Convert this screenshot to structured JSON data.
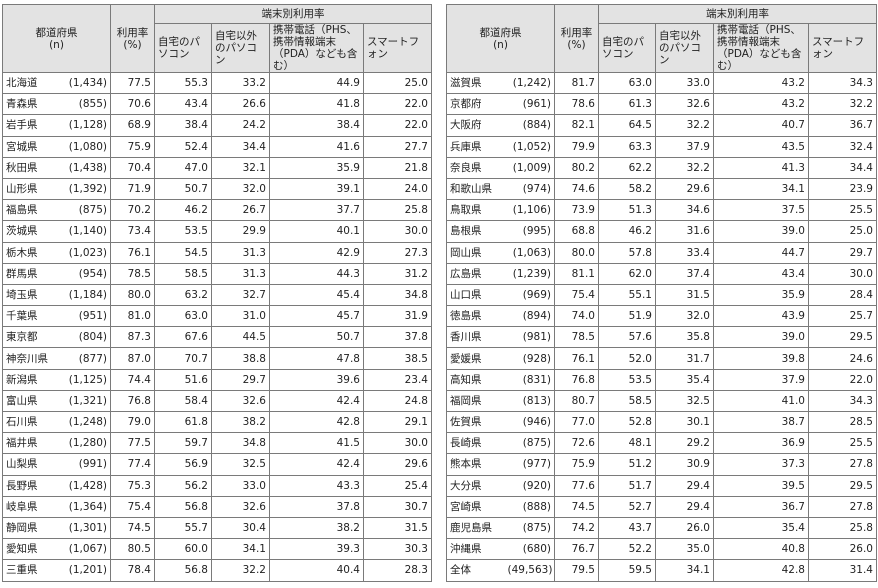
{
  "header": {
    "pref_label": "都道府県",
    "n_label": "(n)",
    "rate_label_1": "利用率",
    "rate_label_2": "(%)",
    "group_label": "端末別利用率",
    "col_home_pc": "自宅のパソコン",
    "col_other_pc": "自宅以外のパソコン",
    "col_mobile": "携帯電話（PHS、携帯情報端末（PDA）なども含む）",
    "col_smartphone": "スマートフォン"
  },
  "left_rows": [
    {
      "name": "北海道",
      "n": "(1,434)",
      "rate": "77.5",
      "home_pc": "55.3",
      "other_pc": "33.2",
      "mobile": "44.9",
      "smart": "25.0"
    },
    {
      "name": "青森県",
      "n": "(855)",
      "rate": "70.6",
      "home_pc": "43.4",
      "other_pc": "26.6",
      "mobile": "41.8",
      "smart": "22.0"
    },
    {
      "name": "岩手県",
      "n": "(1,128)",
      "rate": "68.9",
      "home_pc": "38.4",
      "other_pc": "24.2",
      "mobile": "38.4",
      "smart": "22.0"
    },
    {
      "name": "宮城県",
      "n": "(1,080)",
      "rate": "75.9",
      "home_pc": "52.4",
      "other_pc": "34.4",
      "mobile": "41.6",
      "smart": "27.7"
    },
    {
      "name": "秋田県",
      "n": "(1,438)",
      "rate": "70.4",
      "home_pc": "47.0",
      "other_pc": "32.1",
      "mobile": "35.9",
      "smart": "21.8"
    },
    {
      "name": "山形県",
      "n": "(1,392)",
      "rate": "71.9",
      "home_pc": "50.7",
      "other_pc": "32.0",
      "mobile": "39.1",
      "smart": "24.0"
    },
    {
      "name": "福島県",
      "n": "(875)",
      "rate": "70.2",
      "home_pc": "46.2",
      "other_pc": "26.7",
      "mobile": "37.7",
      "smart": "25.8"
    },
    {
      "name": "茨城県",
      "n": "(1,140)",
      "rate": "73.4",
      "home_pc": "53.5",
      "other_pc": "29.9",
      "mobile": "40.1",
      "smart": "30.0"
    },
    {
      "name": "栃木県",
      "n": "(1,023)",
      "rate": "76.1",
      "home_pc": "54.5",
      "other_pc": "31.3",
      "mobile": "42.9",
      "smart": "27.3"
    },
    {
      "name": "群馬県",
      "n": "(954)",
      "rate": "78.5",
      "home_pc": "58.5",
      "other_pc": "31.3",
      "mobile": "44.3",
      "smart": "31.2"
    },
    {
      "name": "埼玉県",
      "n": "(1,184)",
      "rate": "80.0",
      "home_pc": "63.2",
      "other_pc": "32.7",
      "mobile": "45.4",
      "smart": "34.8"
    },
    {
      "name": "千葉県",
      "n": "(951)",
      "rate": "81.0",
      "home_pc": "63.0",
      "other_pc": "31.0",
      "mobile": "45.7",
      "smart": "31.9"
    },
    {
      "name": "東京都",
      "n": "(804)",
      "rate": "87.3",
      "home_pc": "67.6",
      "other_pc": "44.5",
      "mobile": "50.7",
      "smart": "37.8"
    },
    {
      "name": "神奈川県",
      "n": "(877)",
      "rate": "87.0",
      "home_pc": "70.7",
      "other_pc": "38.8",
      "mobile": "47.8",
      "smart": "38.5"
    },
    {
      "name": "新潟県",
      "n": "(1,125)",
      "rate": "74.4",
      "home_pc": "51.6",
      "other_pc": "29.7",
      "mobile": "39.6",
      "smart": "23.4"
    },
    {
      "name": "富山県",
      "n": "(1,321)",
      "rate": "76.8",
      "home_pc": "58.4",
      "other_pc": "32.6",
      "mobile": "42.4",
      "smart": "24.8"
    },
    {
      "name": "石川県",
      "n": "(1,248)",
      "rate": "79.0",
      "home_pc": "61.8",
      "other_pc": "38.2",
      "mobile": "42.8",
      "smart": "29.1"
    },
    {
      "name": "福井県",
      "n": "(1,280)",
      "rate": "77.5",
      "home_pc": "59.7",
      "other_pc": "34.8",
      "mobile": "41.5",
      "smart": "30.0"
    },
    {
      "name": "山梨県",
      "n": "(991)",
      "rate": "77.4",
      "home_pc": "56.9",
      "other_pc": "32.5",
      "mobile": "42.4",
      "smart": "29.6"
    },
    {
      "name": "長野県",
      "n": "(1,428)",
      "rate": "75.3",
      "home_pc": "56.2",
      "other_pc": "33.0",
      "mobile": "43.3",
      "smart": "25.4"
    },
    {
      "name": "岐阜県",
      "n": "(1,364)",
      "rate": "75.4",
      "home_pc": "56.8",
      "other_pc": "32.6",
      "mobile": "37.8",
      "smart": "30.7"
    },
    {
      "name": "静岡県",
      "n": "(1,301)",
      "rate": "74.5",
      "home_pc": "55.7",
      "other_pc": "30.4",
      "mobile": "38.2",
      "smart": "31.5"
    },
    {
      "name": "愛知県",
      "n": "(1,067)",
      "rate": "80.5",
      "home_pc": "60.0",
      "other_pc": "34.1",
      "mobile": "39.3",
      "smart": "30.3"
    },
    {
      "name": "三重県",
      "n": "(1,201)",
      "rate": "78.4",
      "home_pc": "56.8",
      "other_pc": "32.2",
      "mobile": "40.4",
      "smart": "28.3"
    }
  ],
  "right_rows": [
    {
      "name": "滋賀県",
      "n": "(1,242)",
      "rate": "81.7",
      "home_pc": "63.0",
      "other_pc": "33.0",
      "mobile": "43.2",
      "smart": "34.3"
    },
    {
      "name": "京都府",
      "n": "(961)",
      "rate": "78.6",
      "home_pc": "61.3",
      "other_pc": "32.6",
      "mobile": "43.2",
      "smart": "32.2"
    },
    {
      "name": "大阪府",
      "n": "(884)",
      "rate": "82.1",
      "home_pc": "64.5",
      "other_pc": "32.2",
      "mobile": "40.7",
      "smart": "36.7"
    },
    {
      "name": "兵庫県",
      "n": "(1,052)",
      "rate": "79.9",
      "home_pc": "63.3",
      "other_pc": "37.9",
      "mobile": "43.5",
      "smart": "32.4"
    },
    {
      "name": "奈良県",
      "n": "(1,009)",
      "rate": "80.2",
      "home_pc": "62.2",
      "other_pc": "32.2",
      "mobile": "41.3",
      "smart": "34.4"
    },
    {
      "name": "和歌山県",
      "n": "(974)",
      "rate": "74.6",
      "home_pc": "58.2",
      "other_pc": "29.6",
      "mobile": "34.1",
      "smart": "23.9"
    },
    {
      "name": "鳥取県",
      "n": "(1,106)",
      "rate": "73.9",
      "home_pc": "51.3",
      "other_pc": "34.6",
      "mobile": "37.5",
      "smart": "25.5"
    },
    {
      "name": "島根県",
      "n": "(995)",
      "rate": "68.8",
      "home_pc": "46.2",
      "other_pc": "31.6",
      "mobile": "39.0",
      "smart": "25.0"
    },
    {
      "name": "岡山県",
      "n": "(1,063)",
      "rate": "80.0",
      "home_pc": "57.8",
      "other_pc": "33.4",
      "mobile": "44.7",
      "smart": "29.7"
    },
    {
      "name": "広島県",
      "n": "(1,239)",
      "rate": "81.1",
      "home_pc": "62.0",
      "other_pc": "37.4",
      "mobile": "43.4",
      "smart": "30.0"
    },
    {
      "name": "山口県",
      "n": "(969)",
      "rate": "75.4",
      "home_pc": "55.1",
      "other_pc": "31.5",
      "mobile": "35.9",
      "smart": "28.4"
    },
    {
      "name": "徳島県",
      "n": "(894)",
      "rate": "74.0",
      "home_pc": "51.9",
      "other_pc": "32.0",
      "mobile": "43.9",
      "smart": "25.7"
    },
    {
      "name": "香川県",
      "n": "(981)",
      "rate": "78.5",
      "home_pc": "57.6",
      "other_pc": "35.8",
      "mobile": "39.0",
      "smart": "29.5"
    },
    {
      "name": "愛媛県",
      "n": "(928)",
      "rate": "76.1",
      "home_pc": "52.0",
      "other_pc": "31.7",
      "mobile": "39.8",
      "smart": "24.6"
    },
    {
      "name": "高知県",
      "n": "(831)",
      "rate": "76.8",
      "home_pc": "53.5",
      "other_pc": "35.4",
      "mobile": "37.9",
      "smart": "22.0"
    },
    {
      "name": "福岡県",
      "n": "(813)",
      "rate": "80.7",
      "home_pc": "58.5",
      "other_pc": "32.5",
      "mobile": "41.0",
      "smart": "34.3"
    },
    {
      "name": "佐賀県",
      "n": "(946)",
      "rate": "77.0",
      "home_pc": "52.8",
      "other_pc": "30.1",
      "mobile": "38.7",
      "smart": "28.5"
    },
    {
      "name": "長崎県",
      "n": "(875)",
      "rate": "72.6",
      "home_pc": "48.1",
      "other_pc": "29.2",
      "mobile": "36.9",
      "smart": "25.5"
    },
    {
      "name": "熊本県",
      "n": "(977)",
      "rate": "75.9",
      "home_pc": "51.2",
      "other_pc": "30.9",
      "mobile": "37.3",
      "smart": "27.8"
    },
    {
      "name": "大分県",
      "n": "(920)",
      "rate": "77.6",
      "home_pc": "51.7",
      "other_pc": "29.4",
      "mobile": "39.5",
      "smart": "29.5"
    },
    {
      "name": "宮崎県",
      "n": "(888)",
      "rate": "74.5",
      "home_pc": "52.7",
      "other_pc": "29.4",
      "mobile": "36.7",
      "smart": "27.8"
    },
    {
      "name": "鹿児島県",
      "n": "(875)",
      "rate": "74.2",
      "home_pc": "43.7",
      "other_pc": "26.0",
      "mobile": "35.4",
      "smart": "25.8"
    },
    {
      "name": "沖縄県",
      "n": "(680)",
      "rate": "76.7",
      "home_pc": "52.2",
      "other_pc": "35.0",
      "mobile": "40.8",
      "smart": "26.0"
    },
    {
      "name": "全体",
      "n": "(49,563)",
      "rate": "79.5",
      "home_pc": "59.5",
      "other_pc": "34.1",
      "mobile": "42.8",
      "smart": "31.4"
    }
  ],
  "colors": {
    "header_bg": "#e3e3e3",
    "border": "#7a7a7a"
  }
}
